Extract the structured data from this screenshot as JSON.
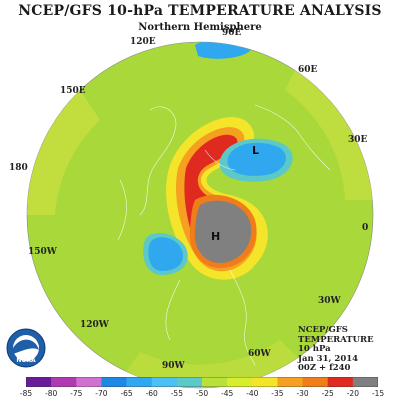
{
  "title": "NCEP/GFS 10-hPa TEMPERATURE ANALYSIS",
  "subtitle": "Northern Hemisphere",
  "longitude_labels": {
    "lon_90e": "90E",
    "lon_120e": "120E",
    "lon_60e": "60E",
    "lon_150e": "150E",
    "lon_30e": "30E",
    "lon_180": "180",
    "lon_0": "0",
    "lon_150w": "150W",
    "lon_30w": "30W",
    "lon_120w": "120W",
    "lon_60w": "60W",
    "lon_90w": "90W"
  },
  "centers": {
    "low": "L",
    "high": "H"
  },
  "info": {
    "line1": "NCEP/GFS",
    "line2": "TEMPERATURE",
    "line3": "10 hPa",
    "line4": "Jan 31, 2014",
    "line5": "00Z + f240"
  },
  "logo_text": "NOAA",
  "colorbar": {
    "labels": [
      "-85",
      "-80",
      "-75",
      "-70",
      "-65",
      "-60",
      "-55",
      "-50",
      "-45",
      "-40",
      "-35",
      "-30",
      "-25",
      "-20",
      "-15"
    ],
    "colors": [
      "#6a1b9a",
      "#b03ab0",
      "#d070d0",
      "#1e88e5",
      "#2fa8f0",
      "#4cc0f5",
      "#5cc8c8",
      "#b8e23a",
      "#d8ec30",
      "#f5e52a",
      "#f5a020",
      "#f07c1a",
      "#e02a20",
      "#808080"
    ]
  },
  "style": {
    "background_field": "#a8d83a",
    "low_color": "#2fa8f0",
    "high_color": "#808080"
  }
}
